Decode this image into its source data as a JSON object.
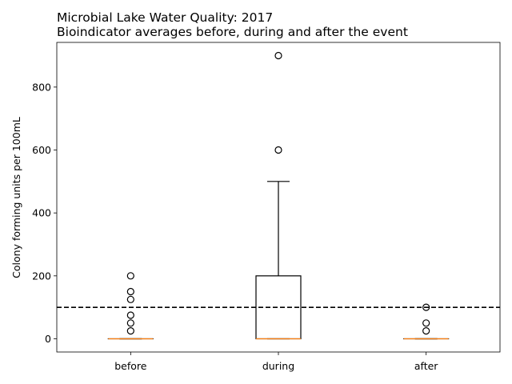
{
  "chart_data": {
    "type": "box",
    "title": "Microbial Lake Water Quality: 2017",
    "subtitle": "Bioindicator averages before, during and after the event",
    "xlabel": "",
    "ylabel": "Colony forming units per 100mL",
    "ylim": [
      -42,
      942
    ],
    "yticks": [
      0,
      200,
      400,
      600,
      800
    ],
    "grid": false,
    "reference_line": {
      "y": 100,
      "style": "dashed",
      "color": "#000000"
    },
    "categories": [
      "before",
      "during",
      "after"
    ],
    "boxes": [
      {
        "category": "before",
        "whisker_low": 0,
        "q1": 0,
        "median": 0,
        "q3": 0,
        "whisker_high": 0,
        "outliers": [
          25,
          50,
          75,
          125,
          150,
          200
        ]
      },
      {
        "category": "during",
        "whisker_low": 0,
        "q1": 0,
        "median": 0,
        "q3": 200,
        "whisker_high": 500,
        "outliers": [
          600,
          900
        ]
      },
      {
        "category": "after",
        "whisker_low": 0,
        "q1": 0,
        "median": 0,
        "q3": 0,
        "whisker_high": 0,
        "outliers": [
          25,
          50,
          100
        ]
      }
    ],
    "colors": {
      "box": "#000000",
      "median": "#ff7f0e",
      "outlier_edge": "#000000"
    }
  }
}
